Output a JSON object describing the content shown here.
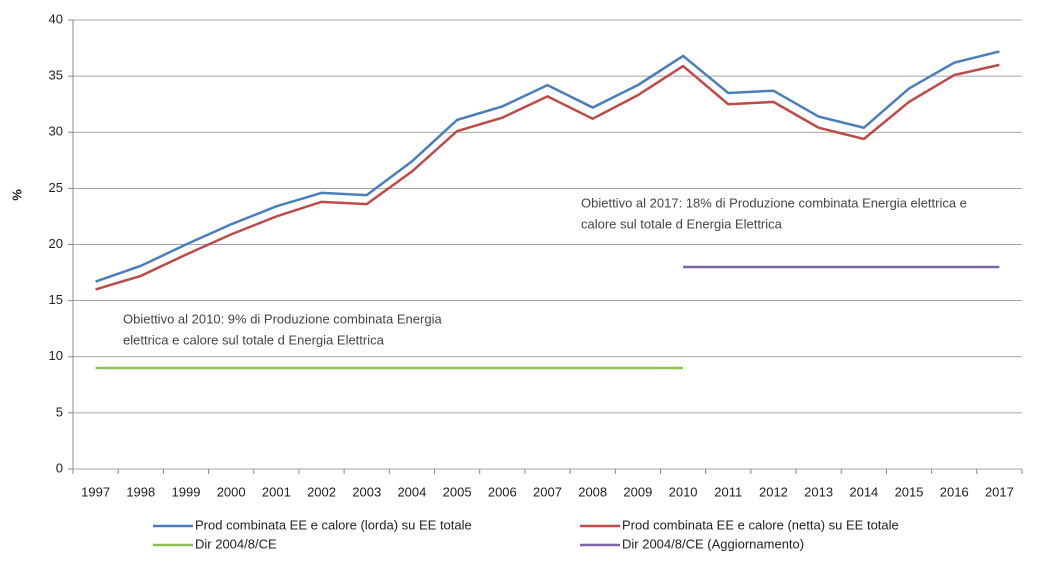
{
  "chart_data": {
    "type": "line",
    "y_label": "%",
    "categories": [
      "1997",
      "1998",
      "1999",
      "2000",
      "2001",
      "2002",
      "2003",
      "2004",
      "2005",
      "2006",
      "2007",
      "2008",
      "2009",
      "2010",
      "2011",
      "2012",
      "2013",
      "2014",
      "2015",
      "2016",
      "2017"
    ],
    "series": [
      {
        "name": "Prod combinata EE e calore (lorda) su EE totale",
        "color": "#4a7ebb",
        "values": [
          16.7,
          18.1,
          20.0,
          21.8,
          23.4,
          24.6,
          24.4,
          27.4,
          31.1,
          32.3,
          34.2,
          32.2,
          34.2,
          36.8,
          33.5,
          33.7,
          31.4,
          30.4,
          33.9,
          36.2,
          37.2
        ]
      },
      {
        "name": "Prod combinata EE e calore (netta) su EE totale",
        "color": "#be4b48",
        "values": [
          16.0,
          17.2,
          19.1,
          20.9,
          22.5,
          23.8,
          23.6,
          26.5,
          30.1,
          31.3,
          33.2,
          31.2,
          33.3,
          35.9,
          32.5,
          32.7,
          30.4,
          29.4,
          32.7,
          35.1,
          36.0
        ]
      },
      {
        "name": "Dir 2004/8/CE",
        "color": "#8cc152",
        "values": [
          9,
          9,
          9,
          9,
          9,
          9,
          9,
          9,
          9,
          9,
          9,
          9,
          9,
          9,
          null,
          null,
          null,
          null,
          null,
          null,
          null
        ]
      },
      {
        "name": "Dir 2004/8/CE (Aggiornamento)",
        "color": "#7f63a8",
        "values": [
          null,
          null,
          null,
          null,
          null,
          null,
          null,
          null,
          null,
          null,
          null,
          null,
          null,
          18,
          18,
          18,
          18,
          18,
          18,
          18,
          18
        ]
      }
    ],
    "annotations": [
      {
        "lines": [
          "Obiettivo al 2010: 9% di Produzione combinata Energia",
          "elettrica e calore  sul totale d Energia Elettrica"
        ]
      },
      {
        "lines": [
          "Obiettivo al 2017: 18% di Produzione combinata Energia elettrica e",
          "calore sul totale d Energia Elettrica"
        ]
      }
    ],
    "ylim": [
      0,
      40
    ],
    "yticks": [
      0,
      5,
      10,
      15,
      20,
      25,
      30,
      35,
      40
    ],
    "grid": true
  }
}
